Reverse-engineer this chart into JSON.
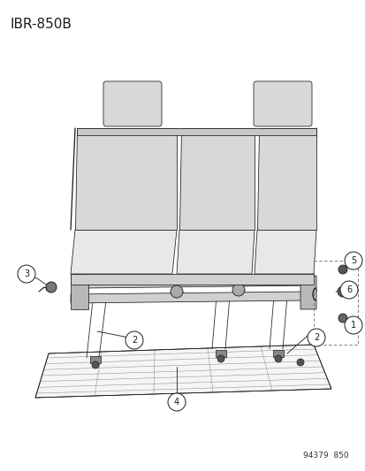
{
  "title": "IBR-850B",
  "subtitle": "94379  850",
  "bg_color": "#ffffff",
  "line_color": "#1a1a1a",
  "title_fontsize": 11,
  "subtitle_fontsize": 6.5,
  "lw_main": 0.9,
  "lw_thin": 0.55,
  "lw_vthin": 0.35,
  "seat_fill": "#e8e8e8",
  "seat_fill2": "#d8d8d8",
  "floor_fill": "#f0f0f0"
}
